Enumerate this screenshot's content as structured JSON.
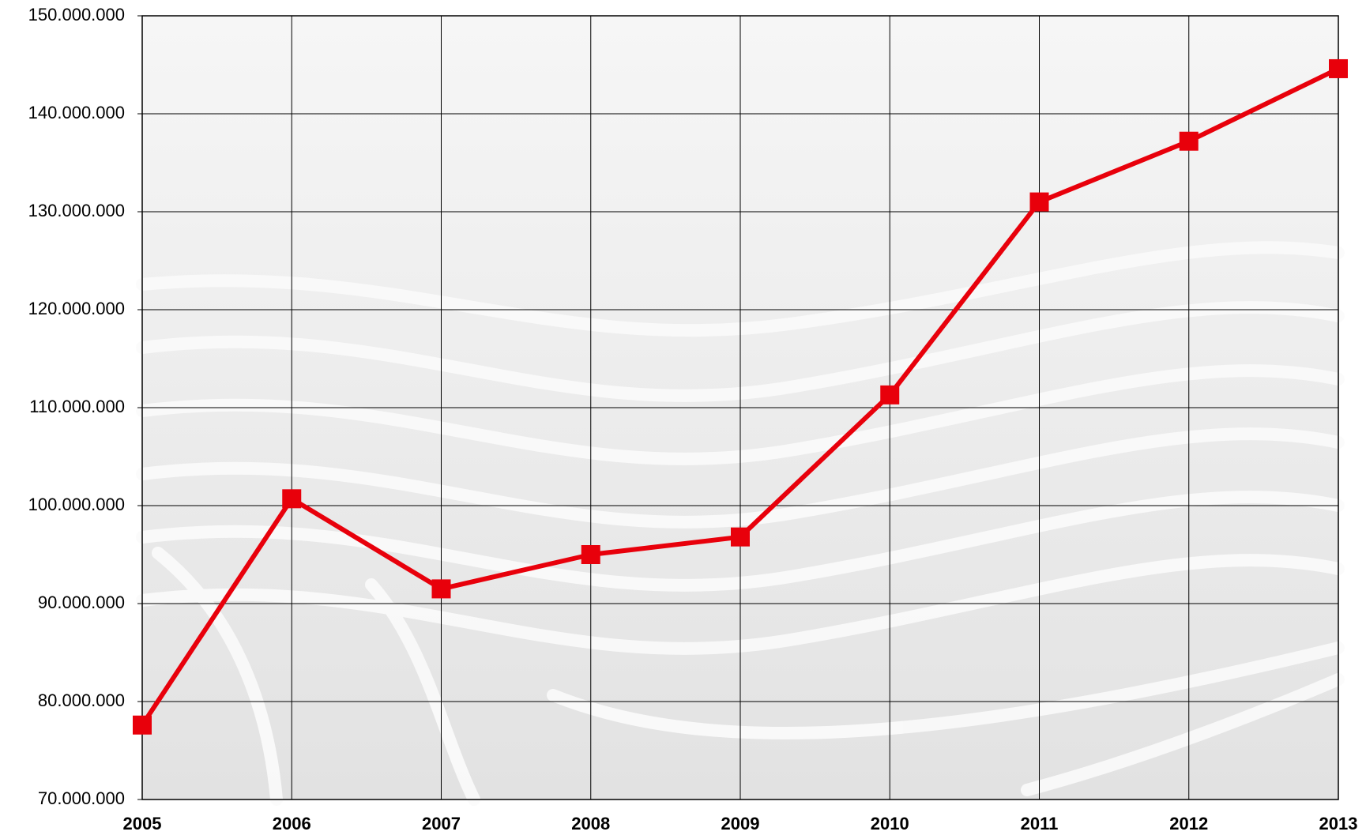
{
  "chart_data": {
    "type": "line",
    "categories": [
      "2005",
      "2006",
      "2007",
      "2008",
      "2009",
      "2010",
      "2011",
      "2012",
      "2013"
    ],
    "series": [
      {
        "color": "#e8000b",
        "values": [
          77600000,
          100700000,
          91500000,
          95000000,
          96800000,
          111300000,
          131000000,
          137200000,
          144600000
        ]
      }
    ],
    "ylim": [
      70000000,
      150000000
    ],
    "yticks": [
      {
        "value": 70000000,
        "label": "70.000.000"
      },
      {
        "value": 80000000,
        "label": "80.000.000"
      },
      {
        "value": 90000000,
        "label": "90.000.000"
      },
      {
        "value": 100000000,
        "label": "100.000.000"
      },
      {
        "value": 110000000,
        "label": "110.000.000"
      },
      {
        "value": 120000000,
        "label": "120.000.000"
      },
      {
        "value": 130000000,
        "label": "130.000.000"
      },
      {
        "value": 140000000,
        "label": "140.000.000"
      },
      {
        "value": 150000000,
        "label": "150.000.000"
      }
    ],
    "grid": true
  }
}
